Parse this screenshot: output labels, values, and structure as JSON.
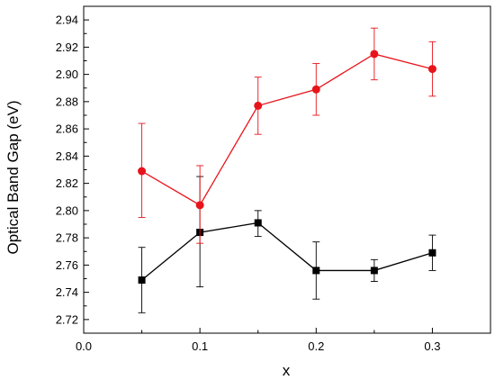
{
  "chart_data": {
    "type": "line",
    "title": "",
    "xlabel": "x",
    "ylabel": "Optical Band Gap (eV)",
    "xlim": [
      0.0,
      0.35
    ],
    "ylim": [
      2.71,
      2.95
    ],
    "x_ticks": [
      0.0,
      0.1,
      0.2,
      0.3
    ],
    "x_tick_labels": [
      "0.0",
      "0.1",
      "0.2",
      "0.3"
    ],
    "y_ticks": [
      2.72,
      2.74,
      2.76,
      2.78,
      2.8,
      2.82,
      2.84,
      2.86,
      2.88,
      2.9,
      2.92,
      2.94
    ],
    "y_tick_labels": [
      "2.72",
      "2.74",
      "2.76",
      "2.78",
      "2.80",
      "2.82",
      "2.84",
      "2.86",
      "2.88",
      "2.90",
      "2.92",
      "2.94"
    ],
    "grid": false,
    "legend": "none",
    "series": [
      {
        "color": "#000000",
        "marker": "square",
        "x": [
          0.05,
          0.1,
          0.15,
          0.2,
          0.25,
          0.3
        ],
        "y": [
          2.749,
          2.784,
          2.791,
          2.756,
          2.756,
          2.769
        ],
        "err_low": [
          2.725,
          2.744,
          2.781,
          2.735,
          2.748,
          2.756
        ],
        "err_high": [
          2.773,
          2.825,
          2.8,
          2.777,
          2.764,
          2.782
        ]
      },
      {
        "color": "#e8141b",
        "marker": "circle",
        "x": [
          0.05,
          0.1,
          0.15,
          0.2,
          0.25,
          0.3
        ],
        "y": [
          2.829,
          2.804,
          2.877,
          2.889,
          2.915,
          2.904
        ],
        "err_low": [
          2.795,
          2.776,
          2.856,
          2.87,
          2.896,
          2.884
        ],
        "err_high": [
          2.864,
          2.833,
          2.898,
          2.908,
          2.934,
          2.924
        ]
      }
    ]
  }
}
